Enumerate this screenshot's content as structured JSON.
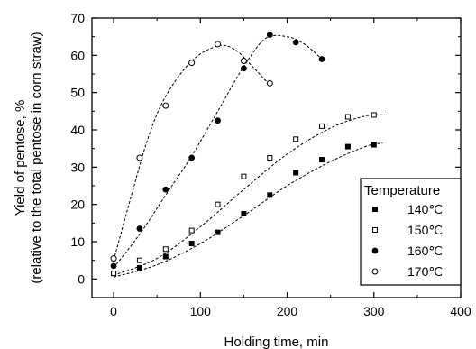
{
  "chart_data": {
    "type": "scatter",
    "title": "",
    "xlabel": "Holding time, min",
    "ylabel_line1": "Yield of pentose, %",
    "ylabel_line2": "(relative to the total pentose in corn straw)",
    "xlim": [
      -25,
      400
    ],
    "ylim": [
      -5,
      70
    ],
    "xticks": [
      0,
      100,
      200,
      300,
      400
    ],
    "yticks": [
      0,
      10,
      20,
      30,
      40,
      50,
      60,
      70
    ],
    "grid": false,
    "fit_lines": "dashed",
    "legend": {
      "title": "Temperature",
      "position": "bottom-right"
    },
    "series": [
      {
        "name": "140℃",
        "marker": "filled-square",
        "x": [
          0,
          30,
          60,
          90,
          120,
          150,
          180,
          210,
          240,
          270,
          300
        ],
        "y": [
          1.5,
          3.0,
          6.0,
          9.5,
          12.5,
          17.5,
          22.5,
          28.5,
          32.0,
          35.5,
          36.0
        ],
        "fit": [
          [
            0,
            0.5
          ],
          [
            50,
            3.8
          ],
          [
            100,
            9.5
          ],
          [
            150,
            17.0
          ],
          [
            200,
            25.0
          ],
          [
            250,
            31.5
          ],
          [
            290,
            35.5
          ],
          [
            310,
            36.5
          ]
        ]
      },
      {
        "name": "150℃",
        "marker": "open-square",
        "x": [
          0,
          30,
          60,
          90,
          120,
          150,
          180,
          210,
          240,
          270,
          300
        ],
        "y": [
          1.5,
          5.0,
          8.0,
          13.0,
          20.0,
          27.5,
          32.5,
          37.5,
          41.0,
          43.5,
          44.0
        ],
        "fit": [
          [
            0,
            1.0
          ],
          [
            50,
            5.5
          ],
          [
            100,
            14.0
          ],
          [
            150,
            24.0
          ],
          [
            200,
            33.5
          ],
          [
            250,
            40.5
          ],
          [
            290,
            43.7
          ],
          [
            315,
            44.0
          ]
        ]
      },
      {
        "name": "160℃",
        "marker": "filled-circle",
        "x": [
          0,
          30,
          60,
          90,
          120,
          150,
          180,
          210,
          240
        ],
        "y": [
          3.5,
          13.5,
          24.0,
          32.5,
          42.5,
          56.5,
          65.5,
          63.5,
          59.0
        ],
        "fit": [
          [
            0,
            3.0
          ],
          [
            30,
            12.0
          ],
          [
            60,
            22.5
          ],
          [
            90,
            33.0
          ],
          [
            120,
            45.0
          ],
          [
            150,
            57.0
          ],
          [
            175,
            64.5
          ],
          [
            200,
            65.0
          ],
          [
            220,
            63.0
          ],
          [
            240,
            59.0
          ]
        ]
      },
      {
        "name": "170℃",
        "marker": "open-circle",
        "x": [
          0,
          30,
          60,
          90,
          120,
          150,
          180
        ],
        "y": [
          5.5,
          32.5,
          46.5,
          58.0,
          63.0,
          58.5,
          52.5
        ],
        "fit": [
          [
            0,
            5.0
          ],
          [
            20,
            22.0
          ],
          [
            40,
            38.0
          ],
          [
            60,
            49.0
          ],
          [
            90,
            58.5
          ],
          [
            120,
            62.5
          ],
          [
            140,
            61.5
          ],
          [
            160,
            57.0
          ],
          [
            180,
            52.0
          ]
        ]
      }
    ]
  }
}
